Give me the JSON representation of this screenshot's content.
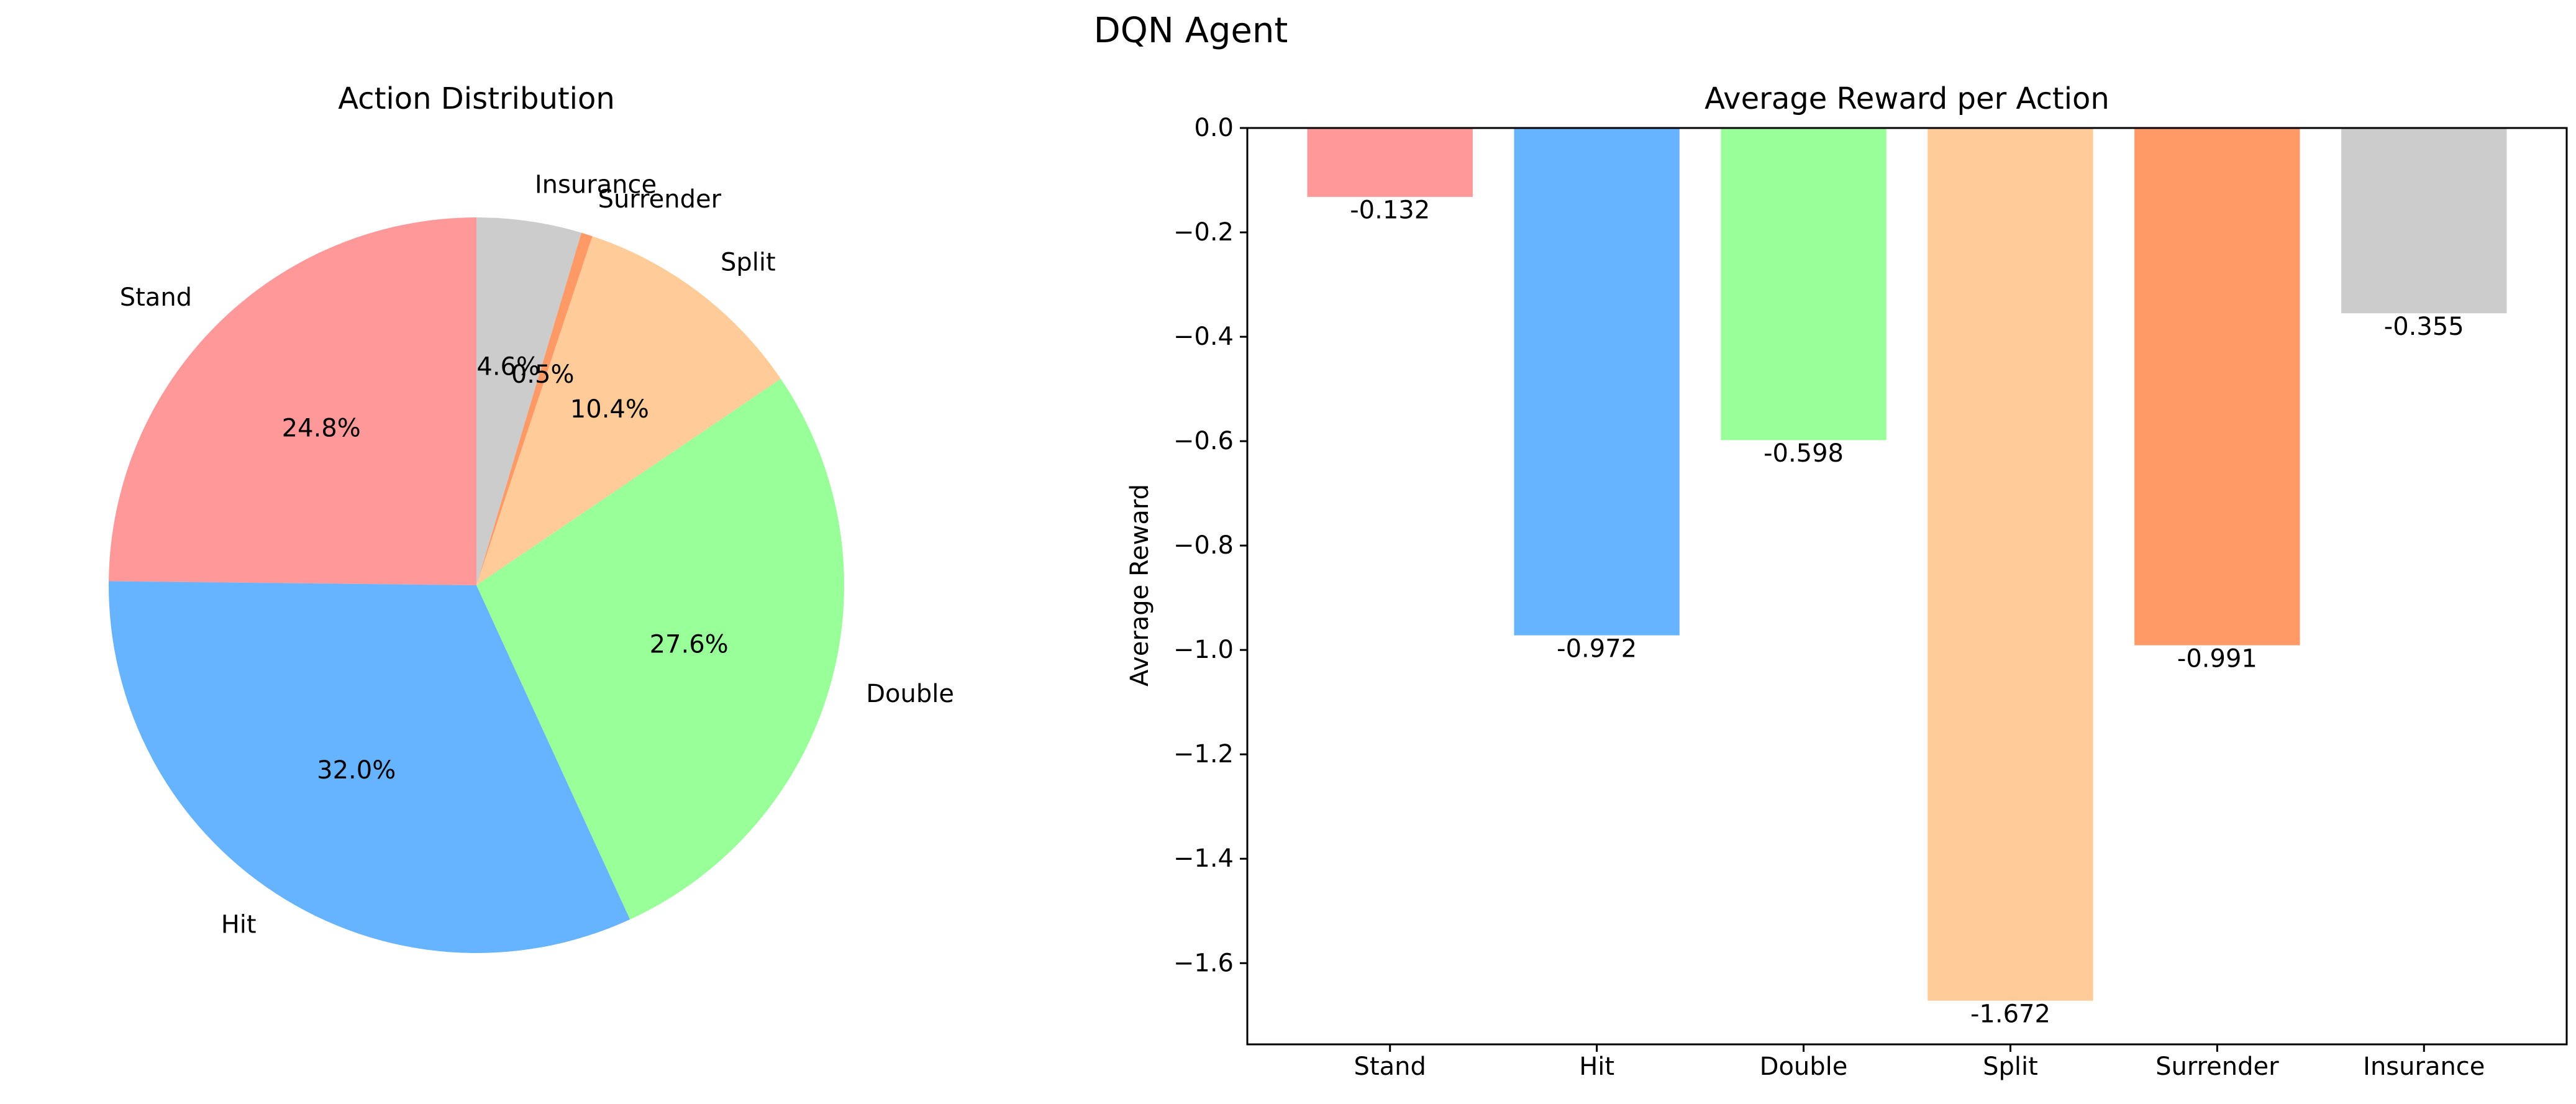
{
  "figure": {
    "title": "DQN Agent"
  },
  "chart_data": [
    {
      "type": "pie",
      "title": "Action Distribution",
      "start_angle_deg": 90,
      "direction": "counterclockwise",
      "slices": [
        {
          "label": "Stand",
          "pct_label": "24.8%",
          "value": 24.8,
          "color": "#ff9999"
        },
        {
          "label": "Hit",
          "pct_label": "32.0%",
          "value": 32.0,
          "color": "#66b3ff"
        },
        {
          "label": "Double",
          "pct_label": "27.6%",
          "value": 27.6,
          "color": "#99ff99"
        },
        {
          "label": "Split",
          "pct_label": "10.4%",
          "value": 10.4,
          "color": "#ffcc99"
        },
        {
          "label": "Surrender",
          "pct_label": "0.5%",
          "value": 0.5,
          "color": "#ff9966"
        },
        {
          "label": "Insurance",
          "pct_label": "4.6%",
          "value": 4.6,
          "color": "#cccccc"
        }
      ]
    },
    {
      "type": "bar",
      "title": "Average Reward per Action",
      "xlabel": "",
      "ylabel": "Average Reward",
      "categories": [
        "Stand",
        "Hit",
        "Double",
        "Split",
        "Surrender",
        "Insurance"
      ],
      "values": [
        -0.132,
        -0.972,
        -0.598,
        -1.672,
        -0.991,
        -0.355
      ],
      "value_labels": [
        "-0.132",
        "-0.972",
        "-0.598",
        "-1.672",
        "-0.991",
        "-0.355"
      ],
      "colors": [
        "#ff9999",
        "#66b3ff",
        "#99ff99",
        "#ffcc99",
        "#ff9966",
        "#cccccc"
      ],
      "ylim": [
        -1.7556,
        0.0
      ],
      "yticks": [
        0.0,
        -0.2,
        -0.4,
        -0.6,
        -0.8,
        -1.0,
        -1.2,
        -1.4,
        -1.6
      ],
      "ytick_labels": [
        "0.0",
        "−0.2",
        "−0.4",
        "−0.6",
        "−0.8",
        "−1.0",
        "−1.2",
        "−1.4",
        "−1.6"
      ],
      "grid": false
    }
  ]
}
